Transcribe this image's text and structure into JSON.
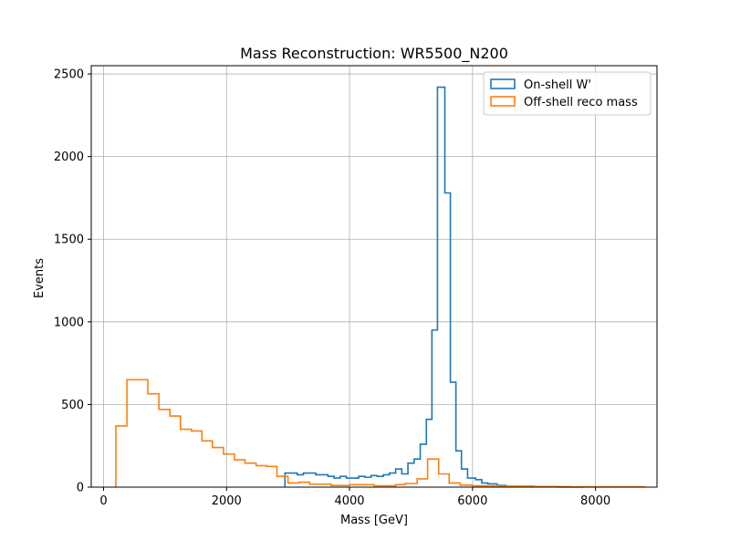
{
  "chart_data": {
    "type": "histogram-step",
    "title": "Mass Reconstruction: WR5500_N200",
    "xlabel": "Mass [GeV]",
    "ylabel": "Events",
    "xlim": [
      -200,
      9000
    ],
    "ylim": [
      0,
      2550
    ],
    "xticks": [
      0,
      2000,
      4000,
      6000,
      8000
    ],
    "xtick_labels": [
      "0",
      "2000",
      "4000",
      "6000",
      "8000"
    ],
    "yticks": [
      0,
      500,
      1000,
      1500,
      2000,
      2500
    ],
    "ytick_labels": [
      "0",
      "500",
      "1000",
      "1500",
      "2000",
      "2500"
    ],
    "grid": true,
    "legend_position": "top-right",
    "series": [
      {
        "name": "On-shell W'",
        "color": "#1f77b4",
        "points": [
          [
            2950,
            0
          ],
          [
            2950,
            85
          ],
          [
            3150,
            85
          ],
          [
            3150,
            75
          ],
          [
            3250,
            75
          ],
          [
            3250,
            85
          ],
          [
            3450,
            85
          ],
          [
            3450,
            75
          ],
          [
            3650,
            75
          ],
          [
            3650,
            65
          ],
          [
            3750,
            65
          ],
          [
            3750,
            55
          ],
          [
            3850,
            55
          ],
          [
            3850,
            65
          ],
          [
            3950,
            65
          ],
          [
            3950,
            55
          ],
          [
            4150,
            55
          ],
          [
            4150,
            65
          ],
          [
            4250,
            65
          ],
          [
            4250,
            60
          ],
          [
            4350,
            60
          ],
          [
            4350,
            70
          ],
          [
            4450,
            70
          ],
          [
            4450,
            65
          ],
          [
            4550,
            65
          ],
          [
            4550,
            75
          ],
          [
            4650,
            75
          ],
          [
            4650,
            85
          ],
          [
            4750,
            85
          ],
          [
            4750,
            110
          ],
          [
            4850,
            110
          ],
          [
            4850,
            80
          ],
          [
            4950,
            80
          ],
          [
            4950,
            145
          ],
          [
            5050,
            145
          ],
          [
            5050,
            170
          ],
          [
            5150,
            170
          ],
          [
            5150,
            260
          ],
          [
            5250,
            260
          ],
          [
            5250,
            410
          ],
          [
            5340,
            410
          ],
          [
            5340,
            950
          ],
          [
            5430,
            950
          ],
          [
            5430,
            2420
          ],
          [
            5550,
            2420
          ],
          [
            5550,
            1780
          ],
          [
            5640,
            1780
          ],
          [
            5640,
            635
          ],
          [
            5730,
            635
          ],
          [
            5730,
            220
          ],
          [
            5820,
            220
          ],
          [
            5820,
            110
          ],
          [
            5920,
            110
          ],
          [
            5920,
            55
          ],
          [
            6050,
            55
          ],
          [
            6050,
            45
          ],
          [
            6150,
            45
          ],
          [
            6150,
            25
          ],
          [
            6250,
            25
          ],
          [
            6250,
            20
          ],
          [
            6400,
            20
          ],
          [
            6400,
            10
          ],
          [
            6550,
            10
          ],
          [
            6550,
            5
          ],
          [
            7000,
            5
          ],
          [
            7000,
            3
          ],
          [
            7400,
            3
          ],
          [
            7400,
            1
          ],
          [
            7800,
            1
          ],
          [
            7800,
            0
          ]
        ]
      },
      {
        "name": "Off-shell reco mass",
        "color": "#ff7f0e",
        "points": [
          [
            200,
            0
          ],
          [
            200,
            370
          ],
          [
            380,
            370
          ],
          [
            380,
            650
          ],
          [
            720,
            650
          ],
          [
            720,
            565
          ],
          [
            900,
            565
          ],
          [
            900,
            470
          ],
          [
            1080,
            470
          ],
          [
            1080,
            430
          ],
          [
            1250,
            430
          ],
          [
            1250,
            350
          ],
          [
            1430,
            350
          ],
          [
            1430,
            340
          ],
          [
            1600,
            340
          ],
          [
            1600,
            280
          ],
          [
            1770,
            280
          ],
          [
            1770,
            240
          ],
          [
            1950,
            240
          ],
          [
            1950,
            200
          ],
          [
            2130,
            200
          ],
          [
            2130,
            165
          ],
          [
            2300,
            165
          ],
          [
            2300,
            145
          ],
          [
            2480,
            145
          ],
          [
            2480,
            130
          ],
          [
            2650,
            130
          ],
          [
            2650,
            125
          ],
          [
            2820,
            125
          ],
          [
            2820,
            65
          ],
          [
            3000,
            65
          ],
          [
            3000,
            25
          ],
          [
            3180,
            25
          ],
          [
            3180,
            30
          ],
          [
            3350,
            30
          ],
          [
            3350,
            18
          ],
          [
            3700,
            18
          ],
          [
            3700,
            10
          ],
          [
            4000,
            10
          ],
          [
            4000,
            15
          ],
          [
            4400,
            15
          ],
          [
            4400,
            8
          ],
          [
            4750,
            8
          ],
          [
            4750,
            15
          ],
          [
            4900,
            15
          ],
          [
            4900,
            22
          ],
          [
            5100,
            22
          ],
          [
            5100,
            50
          ],
          [
            5270,
            50
          ],
          [
            5270,
            170
          ],
          [
            5450,
            170
          ],
          [
            5450,
            80
          ],
          [
            5620,
            80
          ],
          [
            5620,
            25
          ],
          [
            5800,
            25
          ],
          [
            5800,
            12
          ],
          [
            6000,
            12
          ],
          [
            6000,
            8
          ],
          [
            6400,
            8
          ],
          [
            6400,
            5
          ],
          [
            7000,
            5
          ],
          [
            7000,
            3
          ],
          [
            7600,
            3
          ],
          [
            7600,
            2
          ],
          [
            8800,
            2
          ],
          [
            8800,
            0
          ]
        ]
      }
    ]
  }
}
